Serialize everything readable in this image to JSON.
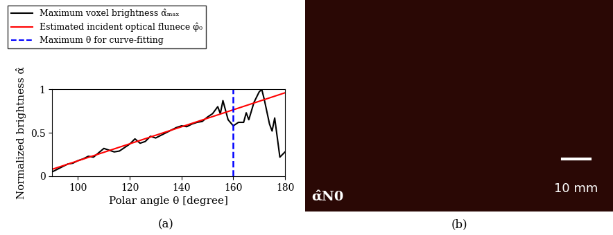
{
  "chart_data": {
    "type": "line",
    "panel_label": "(a)",
    "x_label": "Polar angle θ [degree]",
    "y_label": "Normalized brightness α̂",
    "xlim": [
      90,
      180
    ],
    "ylim": [
      0,
      1
    ],
    "xticks": [
      100,
      120,
      140,
      160,
      180
    ],
    "yticks": [
      0,
      0.5,
      1
    ],
    "legend": "upper left",
    "grid": false,
    "series": [
      {
        "name": "Maximum voxel brightness α̂ₘₐₓ",
        "color": "#000000",
        "line_style": "solid",
        "x": [
          90,
          92,
          94,
          96,
          98,
          100,
          102,
          104,
          106,
          108,
          110,
          112,
          114,
          116,
          118,
          120,
          122,
          124,
          126,
          128,
          130,
          132,
          134,
          136,
          138,
          140,
          142,
          144,
          146,
          148,
          150,
          152,
          154,
          155,
          156,
          158,
          160,
          162,
          164,
          165,
          166,
          168,
          170,
          171,
          172,
          174,
          175,
          176,
          178,
          180
        ],
        "values": [
          0.05,
          0.08,
          0.11,
          0.14,
          0.15,
          0.18,
          0.2,
          0.23,
          0.22,
          0.27,
          0.32,
          0.3,
          0.28,
          0.29,
          0.33,
          0.37,
          0.43,
          0.38,
          0.4,
          0.46,
          0.44,
          0.47,
          0.5,
          0.53,
          0.56,
          0.58,
          0.57,
          0.6,
          0.62,
          0.63,
          0.68,
          0.72,
          0.8,
          0.72,
          0.87,
          0.65,
          0.58,
          0.62,
          0.62,
          0.73,
          0.65,
          0.85,
          0.97,
          1.0,
          0.88,
          0.6,
          0.52,
          0.67,
          0.22,
          0.28
        ]
      },
      {
        "name": "Estimated incident optical flunece φ̂₀",
        "color": "#ff0000",
        "line_style": "solid",
        "x": [
          90,
          180
        ],
        "values": [
          0.08,
          0.96
        ]
      },
      {
        "name": "Maximum θ for curve-fitting",
        "color": "#0000ff",
        "line_style": "dashed",
        "x": [
          160,
          160
        ],
        "values": [
          0,
          1
        ]
      }
    ]
  },
  "image_panel": {
    "panel_label": "(b)",
    "image_label": "α̂N0",
    "scale_bar": "10 mm"
  }
}
